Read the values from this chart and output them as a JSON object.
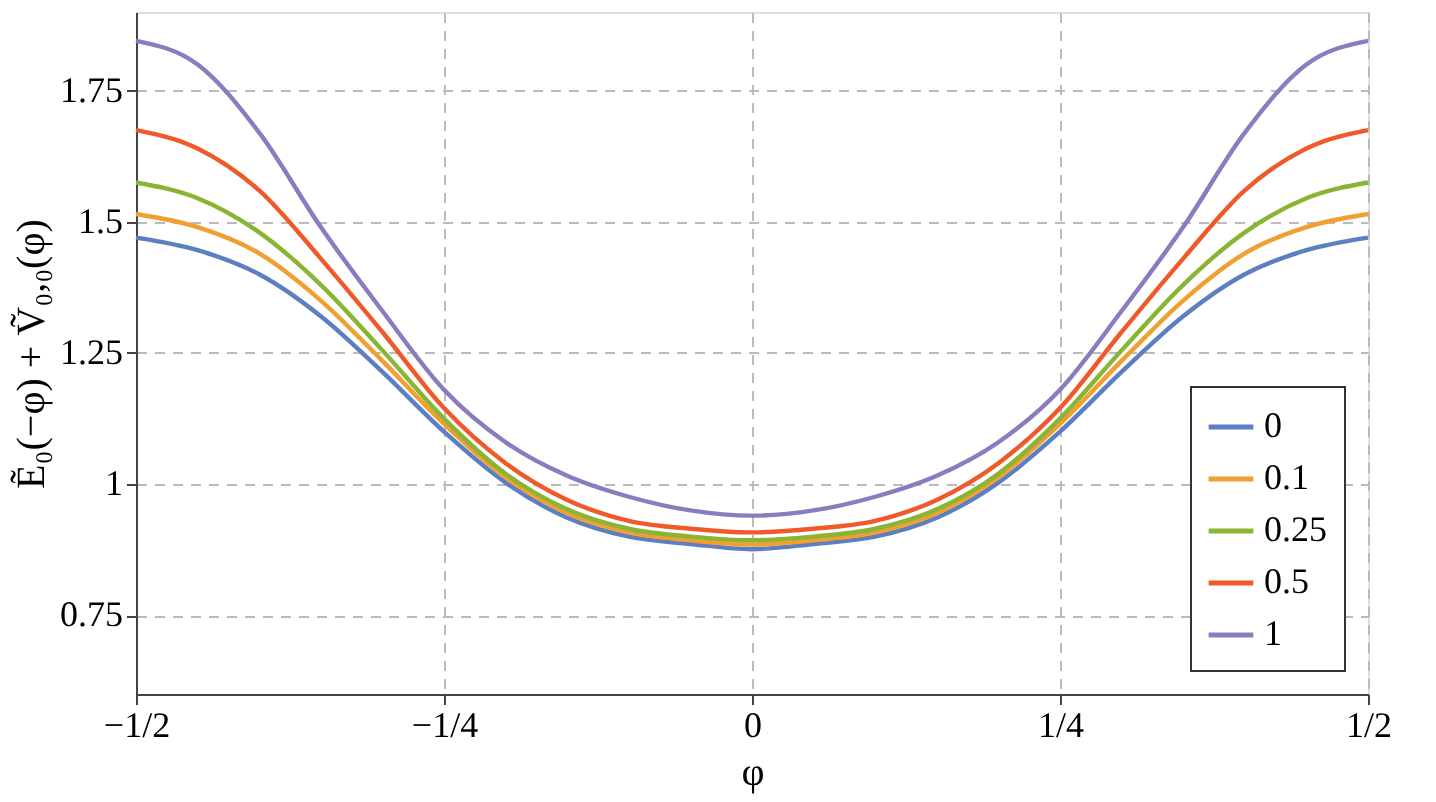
{
  "chart_data": {
    "type": "line",
    "xlabel": "φ",
    "ylabel": "Ẽ₀(−φ) + Ṽ₀,₀(φ)",
    "x": [
      -0.5,
      -0.45,
      -0.4,
      -0.35,
      -0.3,
      -0.25,
      -0.2,
      -0.15,
      -0.1,
      -0.05,
      0,
      0.05,
      0.1,
      0.15,
      0.2,
      0.25,
      0.3,
      0.35,
      0.4,
      0.45,
      0.5
    ],
    "series": [
      {
        "name": "0",
        "color": "#5b7fc1",
        "values": [
          1.47,
          1.446,
          1.4,
          1.32,
          1.214,
          1.1,
          1.003,
          0.936,
          0.9,
          0.886,
          0.876,
          0.886,
          0.9,
          0.936,
          1.003,
          1.1,
          1.214,
          1.32,
          1.4,
          1.446,
          1.47
        ]
      },
      {
        "name": "0.1",
        "color": "#f0a030",
        "values": [
          1.515,
          1.49,
          1.44,
          1.35,
          1.235,
          1.115,
          1.013,
          0.945,
          0.908,
          0.893,
          0.885,
          0.893,
          0.908,
          0.945,
          1.013,
          1.115,
          1.235,
          1.35,
          1.44,
          1.49,
          1.515
        ]
      },
      {
        "name": "0.25",
        "color": "#8ab534",
        "values": [
          1.575,
          1.545,
          1.48,
          1.38,
          1.255,
          1.125,
          1.02,
          0.952,
          0.915,
          0.9,
          0.893,
          0.9,
          0.915,
          0.952,
          1.02,
          1.125,
          1.255,
          1.38,
          1.48,
          1.545,
          1.575
        ]
      },
      {
        "name": "0.5",
        "color": "#f05a2a",
        "values": [
          1.675,
          1.64,
          1.56,
          1.43,
          1.29,
          1.145,
          1.04,
          0.97,
          0.93,
          0.915,
          0.908,
          0.915,
          0.93,
          0.97,
          1.04,
          1.145,
          1.29,
          1.43,
          1.56,
          1.64,
          1.675
        ]
      },
      {
        "name": "1",
        "color": "#8a7cc0",
        "values": [
          1.845,
          1.8,
          1.67,
          1.49,
          1.33,
          1.18,
          1.08,
          1.016,
          0.976,
          0.95,
          0.94,
          0.95,
          0.976,
          1.016,
          1.08,
          1.18,
          1.33,
          1.49,
          1.67,
          1.8,
          1.845
        ]
      }
    ],
    "xlim": [
      -0.5,
      0.5
    ],
    "xticks": [
      {
        "value": -0.5,
        "label": "−1/2"
      },
      {
        "value": -0.25,
        "label": "−1/4"
      },
      0,
      {
        "value": 0.25,
        "label": "1/4"
      },
      {
        "value": 0.5,
        "label": "1/2"
      }
    ],
    "ylim": [
      0.6,
      1.9
    ],
    "yticks": [
      0.75,
      1,
      1.25,
      1.5,
      1.75
    ],
    "grid": true,
    "legend": "bottom right",
    "marker": "none",
    "line_style": "solid"
  }
}
